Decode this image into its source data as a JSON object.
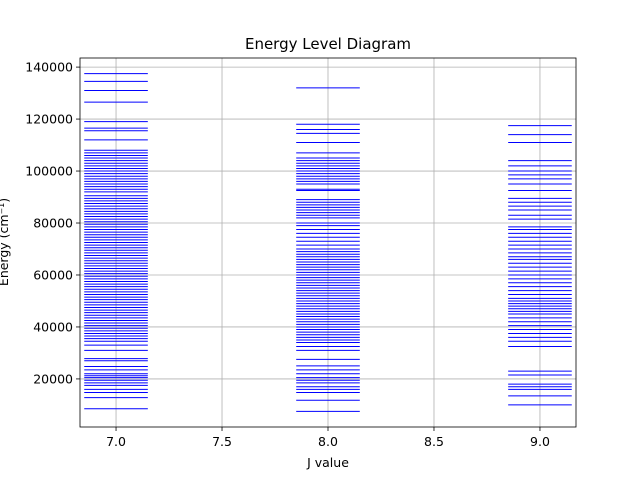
{
  "chart_data": {
    "type": "line",
    "title": "Energy Level Diagram",
    "xlabel": "J value",
    "ylabel": "Energy (cm⁻¹)",
    "xlim": [
      6.83,
      9.17
    ],
    "ylim": [
      1500,
      143500
    ],
    "xticks": [
      7.0,
      7.5,
      8.0,
      8.5,
      9.0
    ],
    "xtick_labels": [
      "7.0",
      "7.5",
      "8.0",
      "8.5",
      "9.0"
    ],
    "yticks": [
      20000,
      40000,
      60000,
      80000,
      100000,
      120000,
      140000
    ],
    "ytick_labels": [
      "20000",
      "40000",
      "60000",
      "80000",
      "100000",
      "120000",
      "140000"
    ],
    "grid": true,
    "line_color": "#0000ff",
    "level_half_width": 0.15,
    "series": [
      {
        "j": 7.0,
        "energies": [
          8500,
          12800,
          14800,
          16000,
          17500,
          18500,
          19500,
          20500,
          21200,
          22000,
          23500,
          24800,
          27000,
          27800,
          31000,
          33000,
          34500,
          35500,
          36500,
          37500,
          38500,
          39500,
          40500,
          41500,
          42500,
          43500,
          44500,
          45500,
          46500,
          47500,
          48500,
          49500,
          50500,
          51500,
          52500,
          53500,
          54500,
          55500,
          56500,
          57500,
          58500,
          59500,
          60500,
          61500,
          62500,
          63500,
          64500,
          65500,
          66500,
          67500,
          68500,
          69500,
          70500,
          71500,
          72500,
          73500,
          74500,
          75500,
          76500,
          77500,
          78500,
          79500,
          80500,
          81500,
          82500,
          83500,
          84500,
          85500,
          86500,
          87500,
          88500,
          89500,
          90500,
          92000,
          93000,
          94000,
          95000,
          96000,
          97000,
          98000,
          99000,
          100000,
          101000,
          102000,
          103000,
          104000,
          105000,
          106000,
          107000,
          108000,
          112000,
          115500,
          116500,
          119000,
          126500,
          131000,
          134500,
          137500
        ]
      },
      {
        "j": 8.0,
        "energies": [
          7500,
          11800,
          14800,
          16000,
          17000,
          18500,
          19500,
          20500,
          22000,
          23500,
          25000,
          27500,
          31000,
          32500,
          34000,
          35000,
          36000,
          37000,
          38000,
          39000,
          40000,
          41000,
          42000,
          43000,
          44000,
          45000,
          46000,
          47000,
          48000,
          49000,
          50000,
          51000,
          52000,
          53000,
          54000,
          55000,
          56000,
          57000,
          58000,
          59000,
          60000,
          61000,
          62000,
          63000,
          64000,
          65000,
          66000,
          67000,
          68000,
          69000,
          70000,
          71500,
          73000,
          74500,
          76000,
          77500,
          79000,
          80000,
          82000,
          83000,
          84000,
          85000,
          86000,
          87000,
          88000,
          89000,
          92500,
          93000,
          95000,
          96000,
          97000,
          98000,
          99000,
          100000,
          101000,
          102000,
          103000,
          104000,
          105000,
          107000,
          111000,
          114500,
          116000,
          118000,
          132000
        ]
      },
      {
        "j": 9.0,
        "energies": [
          10000,
          13500,
          16000,
          17000,
          18000,
          21500,
          23000,
          32500,
          34500,
          36000,
          37500,
          39000,
          40500,
          42000,
          43500,
          45000,
          46000,
          47000,
          48000,
          49000,
          50000,
          51000,
          52500,
          54000,
          55500,
          57000,
          58500,
          60000,
          61500,
          63000,
          64500,
          66000,
          67000,
          68500,
          70000,
          71500,
          73000,
          74500,
          76000,
          77500,
          78500,
          81500,
          83000,
          85000,
          86500,
          88000,
          89500,
          92500,
          95000,
          97000,
          98500,
          100000,
          102000,
          104000,
          111000,
          114000,
          117500
        ]
      }
    ]
  }
}
